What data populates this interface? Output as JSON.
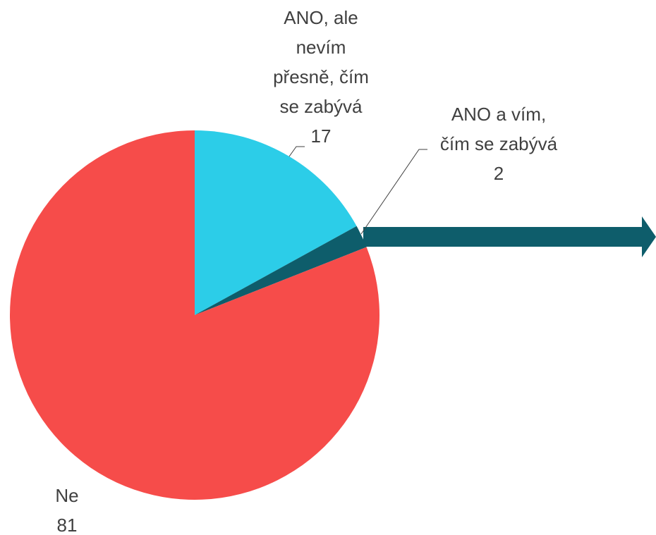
{
  "chart_data": {
    "type": "pie",
    "categories": [
      "ANO, ale nevím přesně, čím se zabývá",
      "ANO a vím, čím se zabývá",
      "Ne"
    ],
    "values": [
      17,
      2,
      81
    ],
    "colors": [
      "#2ccde8",
      "#0e5d6b",
      "#f64c4a"
    ]
  }
}
